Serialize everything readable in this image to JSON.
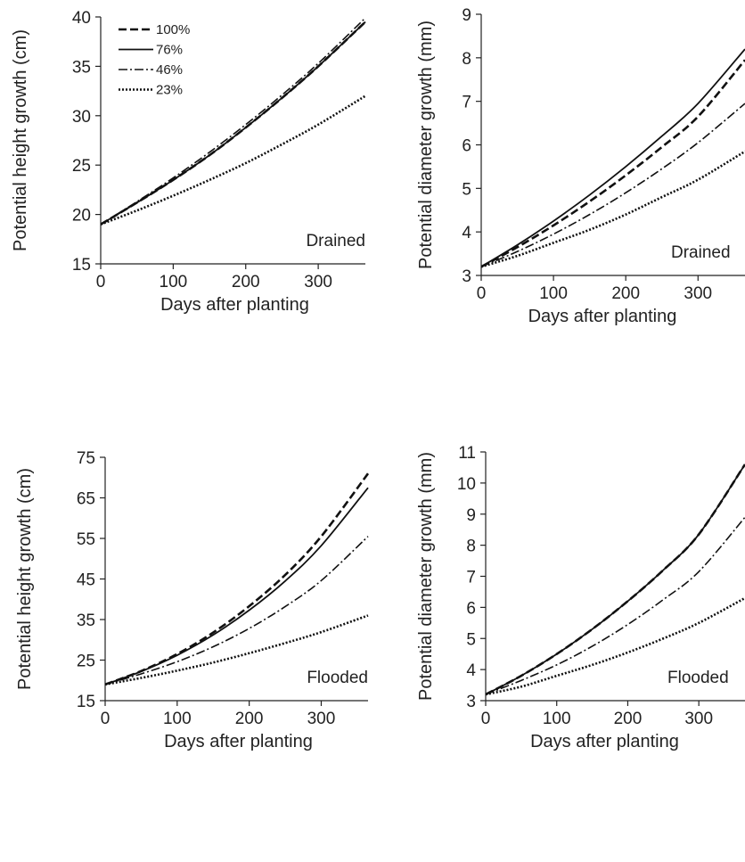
{
  "chart_data": [
    {
      "type": "line",
      "panel_label": "Drained",
      "xlabel": "Days after planting",
      "ylabel": "Potential height growth (cm)",
      "xlim": [
        0,
        365
      ],
      "ylim": [
        15,
        40
      ],
      "xticks": [
        0,
        100,
        200,
        300
      ],
      "yticks": [
        15,
        20,
        25,
        30,
        35,
        40
      ],
      "legend": {
        "placement": "top-left",
        "entries": [
          "100%",
          "76%",
          "46%",
          "23%"
        ]
      },
      "x": [
        0,
        50,
        100,
        150,
        200,
        250,
        300,
        365
      ],
      "series": [
        {
          "name": "100%",
          "style": "dashed",
          "values": [
            19.0,
            21.2,
            23.5,
            26.0,
            28.8,
            31.8,
            35.0,
            39.5
          ]
        },
        {
          "name": "76%",
          "style": "solid",
          "values": [
            19.0,
            21.2,
            23.5,
            26.0,
            28.8,
            31.8,
            35.0,
            39.5
          ]
        },
        {
          "name": "46%",
          "style": "dash-dot",
          "values": [
            19.0,
            21.3,
            23.7,
            26.3,
            29.1,
            32.1,
            35.3,
            39.9
          ]
        },
        {
          "name": "23%",
          "style": "dotted",
          "values": [
            19.0,
            20.4,
            21.9,
            23.5,
            25.2,
            27.1,
            29.1,
            32.0
          ]
        }
      ]
    },
    {
      "type": "line",
      "panel_label": "Drained",
      "xlabel": "Days after planting",
      "ylabel": "Potential diameter growth (mm)",
      "xlim": [
        0,
        365
      ],
      "ylim": [
        3,
        9
      ],
      "xticks": [
        0,
        100,
        200,
        300
      ],
      "yticks": [
        3,
        4,
        5,
        6,
        7,
        8,
        9
      ],
      "x": [
        0,
        50,
        100,
        150,
        200,
        250,
        300,
        365
      ],
      "series": [
        {
          "name": "100%",
          "style": "dashed",
          "values": [
            3.2,
            3.65,
            4.15,
            4.7,
            5.3,
            5.95,
            6.65,
            7.95
          ]
        },
        {
          "name": "76%",
          "style": "solid",
          "values": [
            3.2,
            3.7,
            4.25,
            4.85,
            5.5,
            6.2,
            6.95,
            8.2
          ]
        },
        {
          "name": "46%",
          "style": "dash-dot",
          "values": [
            3.2,
            3.55,
            3.95,
            4.4,
            4.9,
            5.45,
            6.05,
            6.95
          ]
        },
        {
          "name": "23%",
          "style": "dotted",
          "values": [
            3.2,
            3.45,
            3.75,
            4.05,
            4.4,
            4.8,
            5.2,
            5.85
          ]
        }
      ]
    },
    {
      "type": "line",
      "panel_label": "Flooded",
      "xlabel": "Days after planting",
      "ylabel": "Potential height growth (cm)",
      "xlim": [
        0,
        365
      ],
      "ylim": [
        15,
        75
      ],
      "xticks": [
        0,
        100,
        200,
        300
      ],
      "yticks": [
        15,
        25,
        35,
        45,
        55,
        65,
        75
      ],
      "x": [
        0,
        50,
        100,
        150,
        200,
        250,
        300,
        365
      ],
      "series": [
        {
          "name": "100%",
          "style": "dashed",
          "values": [
            19.0,
            22.3,
            26.5,
            31.8,
            38.3,
            46.0,
            55.5,
            71.0
          ]
        },
        {
          "name": "76%",
          "style": "solid",
          "values": [
            19.0,
            22.2,
            26.2,
            31.2,
            37.3,
            44.5,
            53.2,
            67.5
          ]
        },
        {
          "name": "46%",
          "style": "dash-dot",
          "values": [
            19.0,
            21.6,
            24.6,
            28.3,
            32.8,
            38.2,
            44.6,
            55.5
          ]
        },
        {
          "name": "23%",
          "style": "dotted",
          "values": [
            19.0,
            20.6,
            22.4,
            24.4,
            26.7,
            29.2,
            31.9,
            36.0
          ]
        }
      ]
    },
    {
      "type": "line",
      "panel_label": "Flooded",
      "xlabel": "Days after planting",
      "ylabel": "Potential diameter growth (mm)",
      "xlim": [
        0,
        365
      ],
      "ylim": [
        3,
        11
      ],
      "xticks": [
        0,
        100,
        200,
        300
      ],
      "yticks": [
        3,
        4,
        5,
        6,
        7,
        8,
        9,
        10,
        11
      ],
      "x": [
        0,
        50,
        100,
        150,
        200,
        250,
        300,
        365
      ],
      "series": [
        {
          "name": "100%",
          "style": "dashed",
          "values": [
            3.2,
            3.8,
            4.5,
            5.3,
            6.2,
            7.2,
            8.35,
            10.6
          ]
        },
        {
          "name": "76%",
          "style": "solid",
          "values": [
            3.2,
            3.8,
            4.5,
            5.3,
            6.2,
            7.2,
            8.35,
            10.6
          ]
        },
        {
          "name": "46%",
          "style": "dash-dot",
          "values": [
            3.2,
            3.65,
            4.15,
            4.75,
            5.45,
            6.25,
            7.15,
            8.9
          ]
        },
        {
          "name": "23%",
          "style": "dotted",
          "values": [
            3.2,
            3.45,
            3.8,
            4.15,
            4.55,
            5.0,
            5.5,
            6.3
          ]
        }
      ]
    }
  ]
}
